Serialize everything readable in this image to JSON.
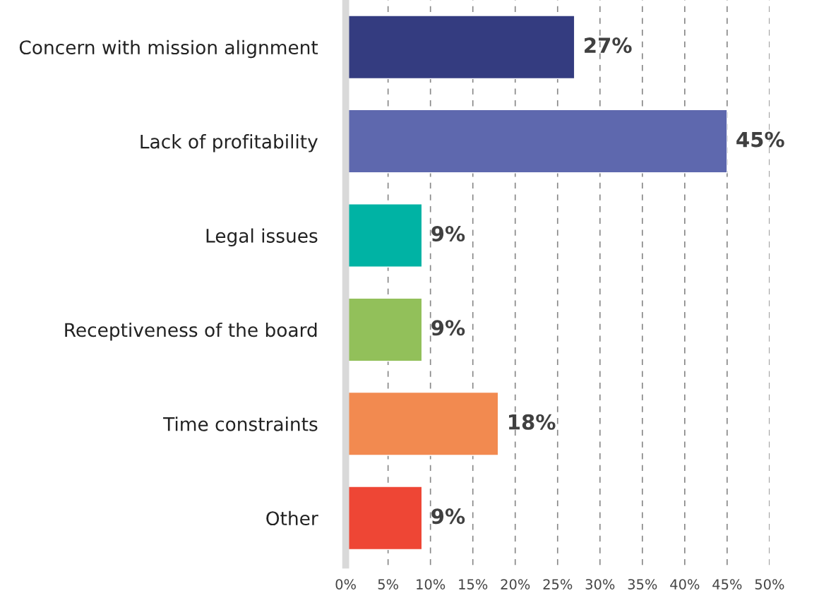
{
  "chart_data": {
    "type": "bar",
    "orientation": "horizontal",
    "categories": [
      "Concern with mission alignment",
      "Lack of profitability",
      "Legal issues",
      "Receptiveness of the board",
      "Time constraints",
      "Other"
    ],
    "values": [
      27,
      45,
      9,
      9,
      18,
      9
    ],
    "colors": [
      "#343c80",
      "#5e68ae",
      "#00b3a4",
      "#92c05a",
      "#f28a50",
      "#ee4635"
    ],
    "value_labels": [
      "27%",
      "45%",
      "9%",
      "9%",
      "18%",
      "9%"
    ],
    "xlim": [
      0,
      50
    ],
    "xticks": [
      {
        "value": 0,
        "label": "0%"
      },
      {
        "value": 5,
        "label": "5%"
      },
      {
        "value": 10,
        "label": "10%"
      },
      {
        "value": 15,
        "label": "15%"
      },
      {
        "value": 20,
        "label": "20%"
      },
      {
        "value": 25,
        "label": "25%"
      },
      {
        "value": 30,
        "label": "30%"
      },
      {
        "value": 35,
        "label": "35%"
      },
      {
        "value": 40,
        "label": "40%"
      },
      {
        "value": 45,
        "label": "45%"
      },
      {
        "value": 50,
        "label": "50%"
      }
    ],
    "grid": "x",
    "legend": false
  }
}
